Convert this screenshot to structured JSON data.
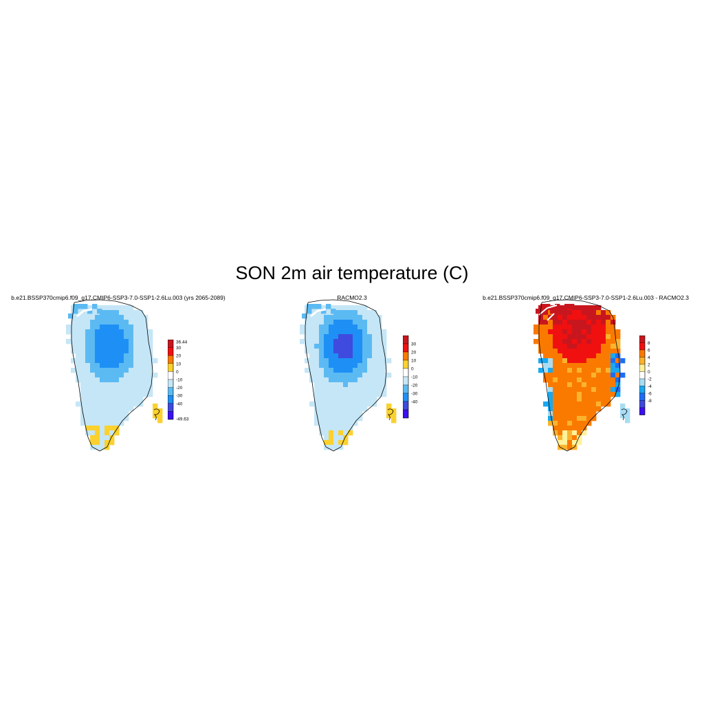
{
  "figure": {
    "title": "SON 2m air temperature (C)"
  },
  "colors": {
    "coastline": "#000000",
    "background": "#ffffff"
  },
  "panels": [
    {
      "title": "b.e21.BSSP370cmip6.f09_g17.CMIP6-SSP3-7.0-SSP1-2.6Lu.003 (yrs 2065-2089)",
      "field": "model",
      "colorbar": {
        "labels": [
          "36.44",
          "30",
          "20",
          "10",
          "0",
          "-10",
          "-20",
          "-30",
          "-40",
          "-49.63"
        ],
        "colors": [
          "#c8161e",
          "#f01010",
          "#fa7a00",
          "#fbd12e",
          "#ffffff",
          "#c5e6f6",
          "#5cbaf3",
          "#1e90f5",
          "#3e4bde",
          "#3a10f0"
        ]
      }
    },
    {
      "title": "RACMO2.3",
      "field": "racmo",
      "colorbar": {
        "labels": [
          "30",
          "20",
          "10",
          "0",
          "-10",
          "-20",
          "-30",
          "-40"
        ],
        "colors": [
          "#c8161e",
          "#f01010",
          "#fa7a00",
          "#fbd12e",
          "#ffffff",
          "#c5e6f6",
          "#5cbaf3",
          "#1e90f5",
          "#3e4bde",
          "#3a10f0"
        ]
      }
    },
    {
      "title": "b.e21.BSSP370cmip6.f09_g17.CMIP6-SSP3-7.0-SSP1-2.6Lu.003 - RACMO2.3",
      "field": "difference",
      "colorbar": {
        "labels": [
          "8",
          "6",
          "4",
          "2",
          "0",
          "-2",
          "-4",
          "-6",
          "-8"
        ],
        "colors": [
          "#c8161e",
          "#f01010",
          "#fa7a00",
          "#fbb32e",
          "#fff29a",
          "#ffffff",
          "#a8ddf4",
          "#1aa8f0",
          "#1e6ef5",
          "#3e4bde",
          "#3a10f0"
        ]
      }
    }
  ]
}
